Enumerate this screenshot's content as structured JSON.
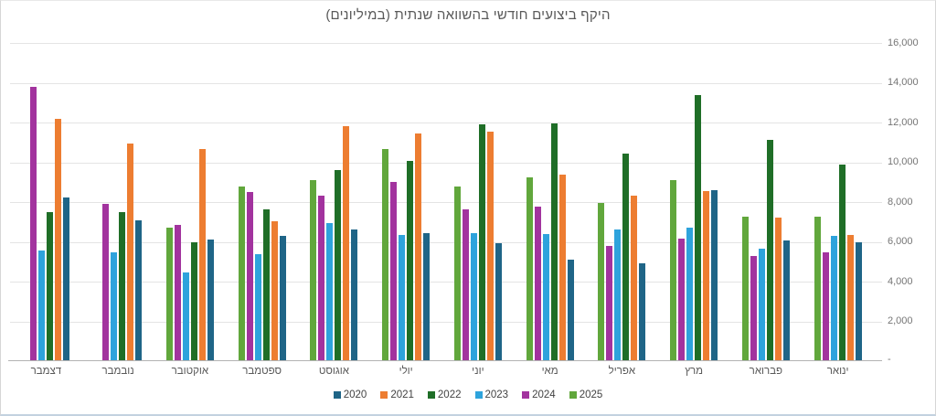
{
  "title": "היקף ביצועים חודשי בהשוואה שנתית (במיליונים)",
  "chart_data": {
    "type": "bar",
    "title": "היקף ביצועים חודשי בהשוואה שנתית (במיליונים)",
    "rtl": true,
    "categories": [
      "ינואר",
      "פברואר",
      "מרץ",
      "אפריל",
      "מאי",
      "יוני",
      "יולי",
      "אוגוסט",
      "ספטמבר",
      "אוקטובר",
      "נובמבר",
      "דצמבר"
    ],
    "category_display_order": "december-on-left-to-january-on-right",
    "series": [
      {
        "name": "2020",
        "color": "#1F6587",
        "values": [
          6000,
          6050,
          8600,
          4900,
          5100,
          5950,
          6450,
          6600,
          6300,
          6100,
          7100,
          8250
        ]
      },
      {
        "name": "2021",
        "color": "#ED7D31",
        "values": [
          6350,
          7200,
          8550,
          8300,
          9400,
          11550,
          11450,
          11800,
          7050,
          10650,
          10950,
          12200
        ]
      },
      {
        "name": "2022",
        "color": "#1F6E27",
        "values": [
          9900,
          11150,
          13400,
          10450,
          11950,
          11900,
          10050,
          9600,
          7650,
          6000,
          7500,
          7500
        ]
      },
      {
        "name": "2023",
        "color": "#2EA3DC",
        "values": [
          6300,
          5650,
          6700,
          6600,
          6400,
          6450,
          6350,
          6950,
          5400,
          4450,
          5450,
          5550
        ]
      },
      {
        "name": "2024",
        "color": "#A2339E",
        "values": [
          5450,
          5300,
          6150,
          5800,
          7750,
          7650,
          9000,
          8300,
          8500,
          6850,
          7900,
          13800
        ]
      },
      {
        "name": "2025",
        "color": "#61A73C",
        "values": [
          7250,
          7250,
          9100,
          7950,
          9250,
          8800,
          10650,
          9100,
          8800,
          6700,
          null,
          null
        ]
      }
    ],
    "ylim": [
      0,
      16000
    ],
    "ytick_interval": 2000,
    "ytick_labels": [
      "16,000",
      "14,000",
      "12,000",
      "10,000",
      "8,000",
      "6,000",
      "4,000",
      "2,000"
    ],
    "zero_label": "-",
    "grid": "horizontal",
    "y_axis_side": "right",
    "legend_position": "bottom",
    "legend_order": [
      "2020",
      "2021",
      "2022",
      "2023",
      "2024",
      "2025"
    ]
  },
  "colors": {
    "grid": "#e4e4e4",
    "axis_line": "#b3b3b3",
    "title_text": "#595959",
    "axis_text": "#757575",
    "month_text": "#595959",
    "legend_text": "#424242"
  }
}
